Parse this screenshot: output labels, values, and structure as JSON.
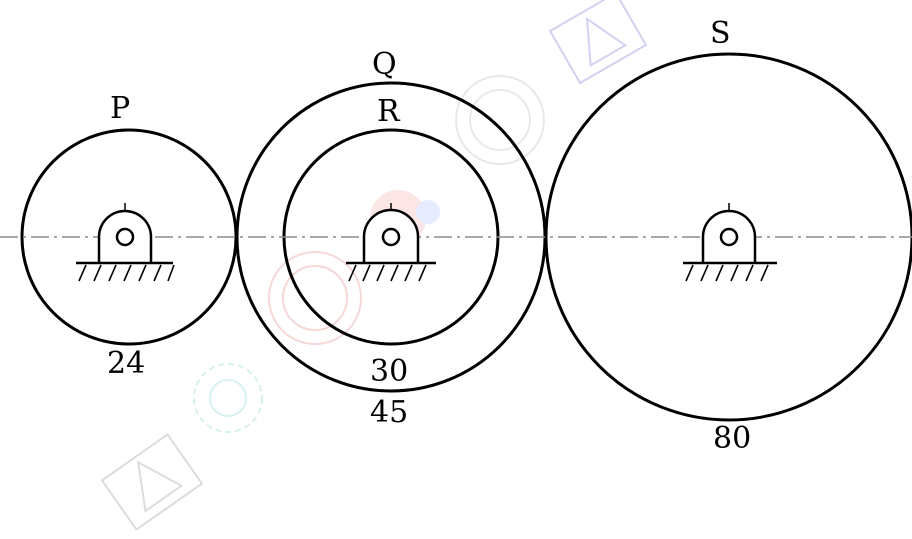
{
  "gears": [
    {
      "id": "P",
      "name_label": "P",
      "teeth_label": "24"
    },
    {
      "id": "Q",
      "name_label": "Q",
      "teeth_label": "45"
    },
    {
      "id": "R",
      "name_label": "R",
      "teeth_label": "30"
    },
    {
      "id": "S",
      "name_label": "S",
      "teeth_label": "80"
    }
  ],
  "colors": {
    "stroke": "#000000",
    "centerline": "#8c8c8c",
    "background": "#ffffff"
  }
}
